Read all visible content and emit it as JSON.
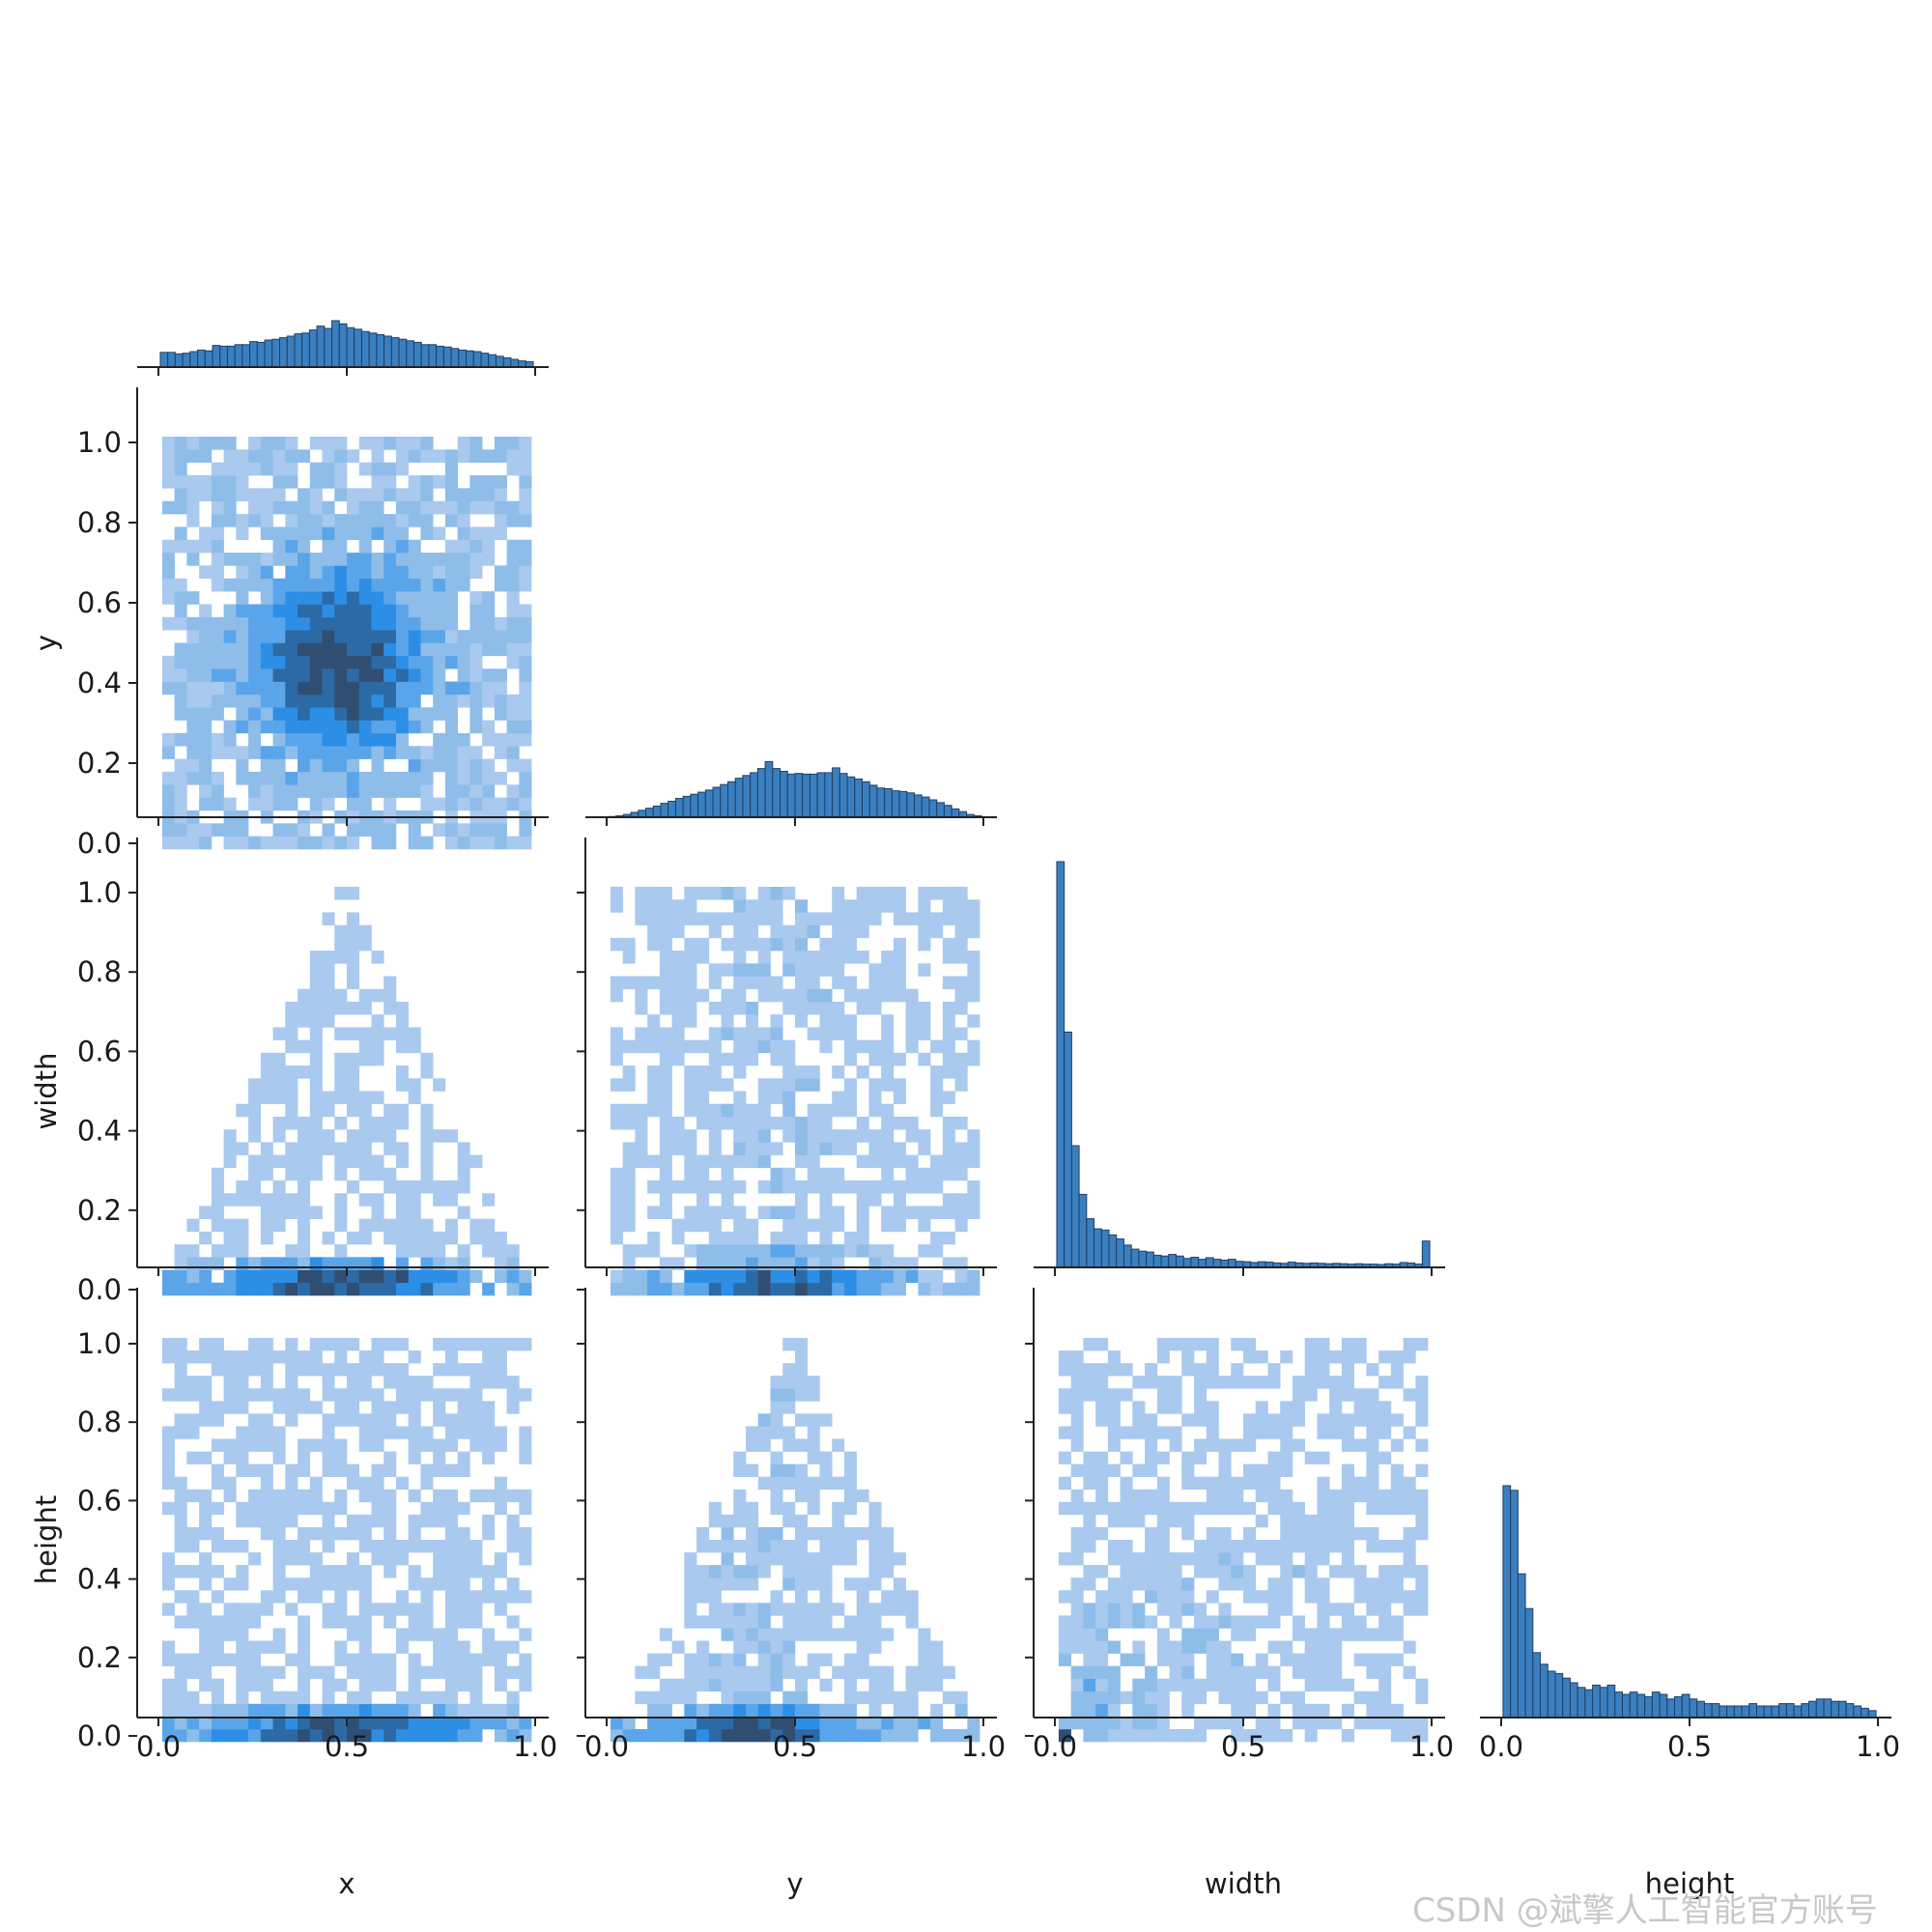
{
  "chart_data": {
    "type": "pairplot",
    "variables": [
      "x",
      "y",
      "width",
      "height"
    ],
    "axis_range": [
      0.0,
      1.0
    ],
    "diag_ticks": [
      "0.0",
      "0.5",
      "1.0"
    ],
    "offdiag_ticks": [
      "0.0",
      "0.2",
      "0.4",
      "0.6",
      "0.8",
      "1.0"
    ],
    "hist_color": "#3a7fc0",
    "hist_edge": "#1f3f63",
    "heat_colors": [
      "#a9c9ef",
      "#8ebde9",
      "#5aa5ea",
      "#2d8ee6",
      "#2c6aa6",
      "#2f4e72"
    ],
    "diagonal": {
      "x": [
        0.19,
        0.19,
        0.17,
        0.18,
        0.2,
        0.22,
        0.21,
        0.28,
        0.27,
        0.27,
        0.29,
        0.29,
        0.33,
        0.32,
        0.35,
        0.36,
        0.38,
        0.4,
        0.43,
        0.44,
        0.48,
        0.53,
        0.5,
        0.6,
        0.56,
        0.51,
        0.49,
        0.46,
        0.44,
        0.42,
        0.4,
        0.38,
        0.36,
        0.34,
        0.32,
        0.29,
        0.29,
        0.27,
        0.26,
        0.24,
        0.22,
        0.21,
        0.2,
        0.18,
        0.16,
        0.14,
        0.12,
        0.1,
        0.08,
        0.07
      ],
      "y": [
        0.01,
        0.02,
        0.04,
        0.07,
        0.1,
        0.13,
        0.16,
        0.2,
        0.23,
        0.27,
        0.3,
        0.33,
        0.36,
        0.39,
        0.43,
        0.47,
        0.51,
        0.56,
        0.6,
        0.64,
        0.7,
        0.8,
        0.7,
        0.66,
        0.62,
        0.63,
        0.62,
        0.62,
        0.64,
        0.64,
        0.71,
        0.63,
        0.58,
        0.55,
        0.51,
        0.46,
        0.42,
        0.41,
        0.38,
        0.37,
        0.35,
        0.32,
        0.29,
        0.25,
        0.21,
        0.17,
        0.12,
        0.08,
        0.04,
        0.02
      ],
      "width": [
        1.0,
        0.58,
        0.3,
        0.18,
        0.12,
        0.095,
        0.092,
        0.08,
        0.07,
        0.055,
        0.045,
        0.04,
        0.038,
        0.03,
        0.028,
        0.032,
        0.028,
        0.022,
        0.025,
        0.02,
        0.024,
        0.02,
        0.018,
        0.02,
        0.015,
        0.014,
        0.012,
        0.014,
        0.013,
        0.011,
        0.01,
        0.013,
        0.011,
        0.01,
        0.011,
        0.01,
        0.009,
        0.01,
        0.009,
        0.008,
        0.009,
        0.008,
        0.008,
        0.007,
        0.009,
        0.008,
        0.012,
        0.011,
        0.008,
        0.065
      ],
      "height": [
        1.0,
        0.98,
        0.62,
        0.47,
        0.28,
        0.23,
        0.2,
        0.19,
        0.17,
        0.15,
        0.13,
        0.12,
        0.14,
        0.13,
        0.14,
        0.11,
        0.1,
        0.11,
        0.1,
        0.09,
        0.11,
        0.1,
        0.08,
        0.09,
        0.1,
        0.08,
        0.07,
        0.06,
        0.06,
        0.05,
        0.05,
        0.05,
        0.05,
        0.06,
        0.05,
        0.05,
        0.05,
        0.06,
        0.06,
        0.05,
        0.06,
        0.07,
        0.08,
        0.08,
        0.07,
        0.07,
        0.06,
        0.05,
        0.04,
        0.03
      ]
    }
  },
  "watermark": "CSDN @斌擎人工智能官方账号"
}
